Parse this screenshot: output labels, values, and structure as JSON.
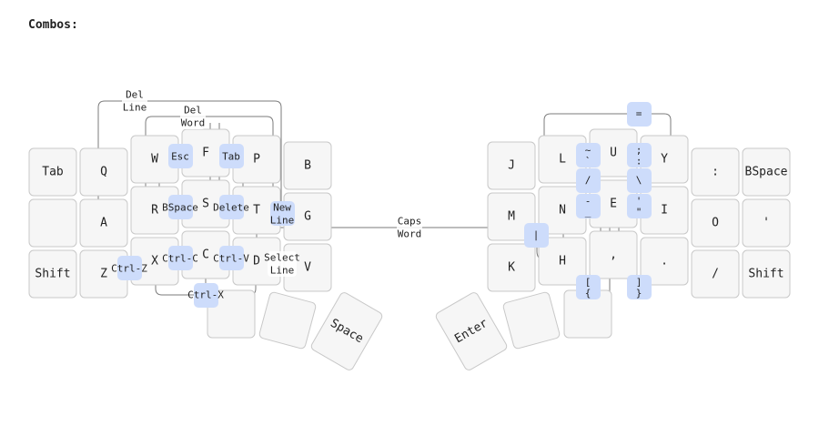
{
  "title": "Combos:",
  "keys": {
    "l_tab": "Tab",
    "l_q": "Q",
    "l_w": "W",
    "l_f": "F",
    "l_p": "P",
    "l_b": "B",
    "l_blank": "",
    "l_a": "A",
    "l_r": "R",
    "l_s": "S",
    "l_t": "T",
    "l_g": "G",
    "l_shift": "Shift",
    "l_z": "Z",
    "l_x": "X",
    "l_c": "C",
    "l_d": "D",
    "l_v": "V",
    "l_th1": "",
    "l_th2": "",
    "l_space": "Space",
    "r_j": "J",
    "r_l": "L",
    "r_u": "U",
    "r_y": "Y",
    "r_colon": ":",
    "r_bspace": "BSpace",
    "r_m": "M",
    "r_n": "N",
    "r_e": "E",
    "r_i": "I",
    "r_o": "O",
    "r_quote": "'",
    "r_k": "K",
    "r_h": "H",
    "r_comma": ",",
    "r_dot": ".",
    "r_slash": "/",
    "r_shift": "Shift",
    "r_enter": "Enter",
    "r_th2": "",
    "r_th3": ""
  },
  "combos": {
    "del_line": [
      "Del",
      "Line"
    ],
    "del_word": [
      "Del",
      "Word"
    ],
    "esc": "Esc",
    "tab": "Tab",
    "bspace": "BSpace",
    "delete": "Delete",
    "new_line": [
      "New",
      "Line"
    ],
    "ctrl_z": "Ctrl-Z",
    "ctrl_c": "Ctrl-C",
    "ctrl_v": "Ctrl-V",
    "select_line": [
      "Select",
      "Line"
    ],
    "ctrl_x": "Ctrl-X",
    "caps_word": [
      "Caps",
      "Word"
    ],
    "equals": "=",
    "tilde": [
      "~",
      "`"
    ],
    "semicolon": [
      ";",
      ":"
    ],
    "slash": "/",
    "backslash": "\\",
    "minus": [
      "-",
      "_"
    ],
    "quote": [
      "'",
      "\""
    ],
    "pipe": "|",
    "bracket_left": [
      "[",
      "{"
    ],
    "bracket_right": [
      "]",
      "}"
    ]
  }
}
